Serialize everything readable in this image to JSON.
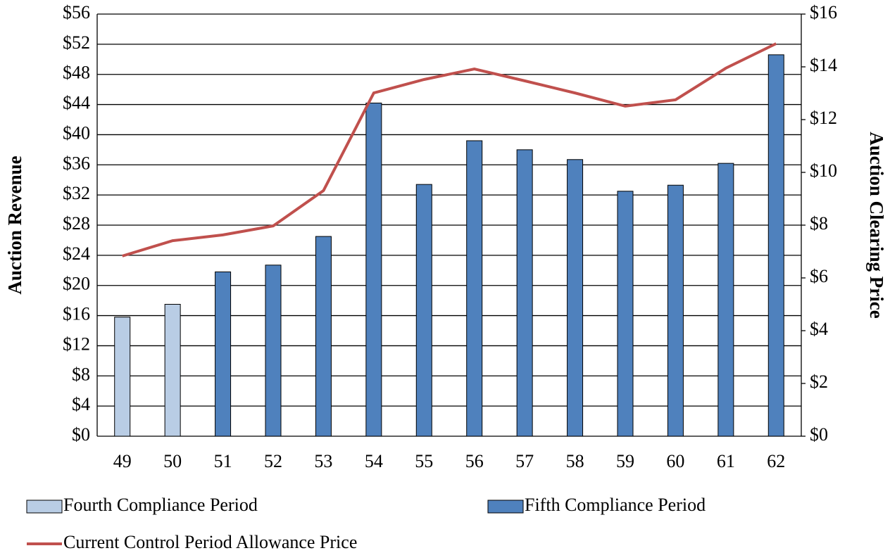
{
  "chart_data": {
    "type": "bar",
    "categories": [
      "49",
      "50",
      "51",
      "52",
      "53",
      "54",
      "55",
      "56",
      "57",
      "58",
      "59",
      "60",
      "61",
      "62"
    ],
    "series": [
      {
        "name": "Fourth Compliance Period",
        "color": "#b9cde5",
        "values": [
          15.8,
          17.5,
          null,
          null,
          null,
          null,
          null,
          null,
          null,
          null,
          null,
          null,
          null,
          null
        ]
      },
      {
        "name": "Fifth Compliance Period",
        "color": "#4f81bd",
        "values": [
          null,
          null,
          21.8,
          22.7,
          26.5,
          44.2,
          33.4,
          39.2,
          38.0,
          36.7,
          32.5,
          33.3,
          36.2,
          50.6
        ]
      },
      {
        "name": "Current Control Period Allowance Price",
        "color": "#c0504d",
        "type": "line",
        "axis": "y2",
        "values": [
          6.83,
          7.41,
          7.63,
          7.97,
          9.31,
          13.01,
          13.52,
          13.92,
          13.47,
          13.01,
          12.51,
          12.75,
          13.95,
          14.88
        ]
      }
    ],
    "ylabel": "Auction Revenue",
    "y2label": "Auction Clearing Price",
    "ylim": [
      0,
      56
    ],
    "yticks": [
      {
        "value": 0,
        "label": "$0"
      },
      {
        "value": 4,
        "label": "$4"
      },
      {
        "value": 8,
        "label": "$8"
      },
      {
        "value": 12,
        "label": "$12"
      },
      {
        "value": 16,
        "label": "$16"
      },
      {
        "value": 20,
        "label": "$20"
      },
      {
        "value": 24,
        "label": "$24"
      },
      {
        "value": 28,
        "label": "$28"
      },
      {
        "value": 32,
        "label": "$32"
      },
      {
        "value": 36,
        "label": "$36"
      },
      {
        "value": 40,
        "label": "$40"
      },
      {
        "value": 44,
        "label": "$44"
      },
      {
        "value": 48,
        "label": "$48"
      },
      {
        "value": 52,
        "label": "$52"
      },
      {
        "value": 56,
        "label": "$56"
      }
    ],
    "y2lim": [
      0,
      16
    ],
    "y2ticks": [
      {
        "value": 0,
        "label": "$0"
      },
      {
        "value": 2,
        "label": "$2"
      },
      {
        "value": 4,
        "label": "$4"
      },
      {
        "value": 6,
        "label": "$6"
      },
      {
        "value": 8,
        "label": "$8"
      },
      {
        "value": 10,
        "label": "$10"
      },
      {
        "value": 12,
        "label": "$12"
      },
      {
        "value": 14,
        "label": "$14"
      },
      {
        "value": 16,
        "label": "$16"
      }
    ],
    "grid": true
  }
}
